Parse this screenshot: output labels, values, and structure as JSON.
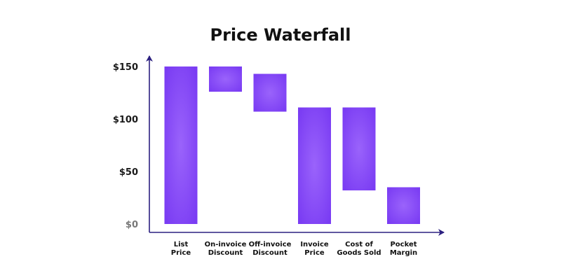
{
  "chart_data": {
    "type": "bar",
    "subtype": "waterfall",
    "title": "Price Waterfall",
    "xlabel": "",
    "ylabel": "",
    "ylim": [
      0,
      150
    ],
    "yticks": [
      {
        "value": 0,
        "label": "$0"
      },
      {
        "value": 50,
        "label": "$50"
      },
      {
        "value": 100,
        "label": "$100"
      },
      {
        "value": 150,
        "label": "$150"
      }
    ],
    "categories": [
      [
        "List",
        "Price"
      ],
      [
        "On-invoice",
        "Discount"
      ],
      [
        "Off-invoice",
        "Discount"
      ],
      [
        "Invoice",
        "Price"
      ],
      [
        "Cost of",
        "Goods Sold"
      ],
      [
        "Pocket",
        "Margin"
      ]
    ],
    "bars": [
      {
        "start": 0,
        "end": 150
      },
      {
        "start": 126,
        "end": 150
      },
      {
        "start": 107,
        "end": 143
      },
      {
        "start": 0,
        "end": 111
      },
      {
        "start": 32,
        "end": 111
      },
      {
        "start": 0,
        "end": 35
      }
    ],
    "grid": false,
    "legend": "none",
    "colors": {
      "bar": "#7a3cf3",
      "bar_highlight": "#9a63fb",
      "axis": "#2c2080"
    }
  }
}
